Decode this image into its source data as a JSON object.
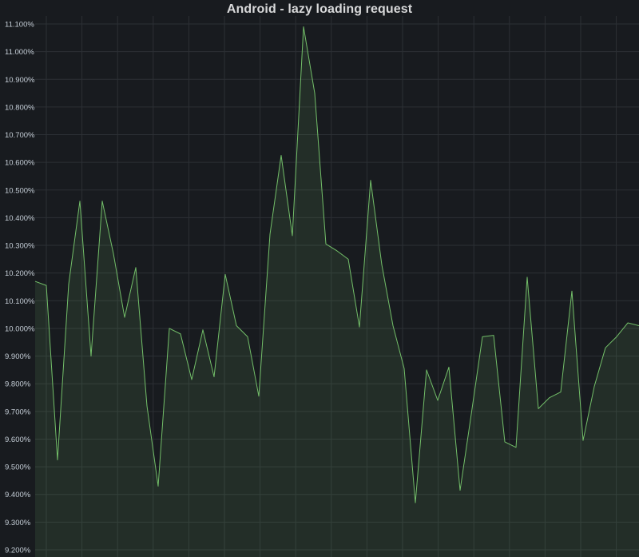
{
  "panel": {
    "title": "Android - lazy loading request"
  },
  "colors": {
    "background": "#181b1f",
    "grid": "#2c3035",
    "line": "#73bf69",
    "fill": "#73bf69",
    "text": "#c7d0d9"
  },
  "chart_data": {
    "type": "area",
    "title": "Android - lazy loading request",
    "xlabel": "",
    "ylabel": "",
    "ylim": [
      9.2,
      11.12
    ],
    "grid": true,
    "legend": "none",
    "y_ticks": [
      11.1,
      11.0,
      10.9,
      10.8,
      10.7,
      10.6,
      10.5,
      10.4,
      10.3,
      10.2,
      10.1,
      10.0,
      9.9,
      9.8,
      9.7,
      9.6,
      9.5,
      9.4,
      9.3,
      9.2
    ],
    "y_tick_labels": [
      "11.100%",
      "11.000%",
      "10.900%",
      "10.800%",
      "10.700%",
      "10.600%",
      "10.500%",
      "10.400%",
      "10.300%",
      "10.200%",
      "10.100%",
      "10.000%",
      "9.900%",
      "9.800%",
      "9.700%",
      "9.600%",
      "9.500%",
      "9.400%",
      "9.300%",
      "9.200%"
    ],
    "series": [
      {
        "values": [
          10.17,
          10.155,
          9.525,
          10.16,
          10.46,
          9.9,
          10.46,
          10.27,
          10.04,
          10.22,
          9.72,
          9.43,
          10.0,
          9.98,
          9.815,
          9.995,
          9.825,
          10.195,
          10.01,
          9.97,
          9.755,
          10.34,
          10.625,
          10.335,
          11.09,
          10.85,
          10.305,
          10.28,
          10.25,
          10.005,
          10.535,
          10.23,
          10.01,
          9.855,
          9.37,
          9.85,
          9.74,
          9.86,
          9.415,
          9.69,
          9.97,
          9.975,
          9.59,
          9.57,
          10.185,
          9.71,
          9.75,
          9.77,
          10.135,
          9.595,
          9.79,
          9.93,
          9.97,
          10.02,
          10.01
        ]
      }
    ]
  }
}
